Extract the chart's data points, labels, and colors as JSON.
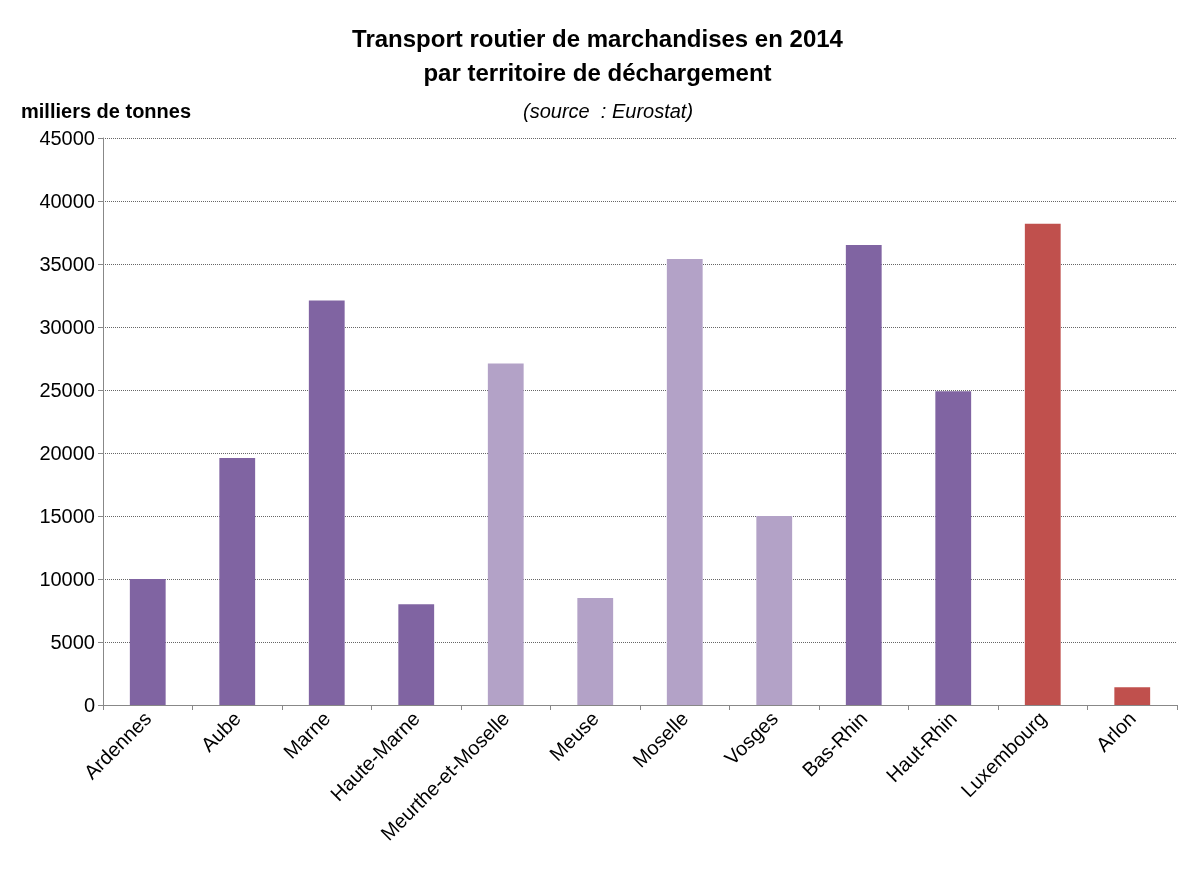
{
  "chart_data": {
    "type": "bar",
    "title": "Transport routier de marchandises en 2014\npar territoire de déchargement",
    "subtitle": "(source  : Eurostat)",
    "ylabel": "milliers de tonnes",
    "categories": [
      "Ardennes",
      "Aube",
      "Marne",
      "Haute-Marne",
      "Meurthe-et-Moselle",
      "Meuse",
      "Moselle",
      "Vosges",
      "Bas-Rhin",
      "Haut-Rhin",
      "Luxembourg",
      "Arlon"
    ],
    "values": [
      10000,
      19600,
      32100,
      8000,
      27100,
      8500,
      35400,
      15000,
      36500,
      24900,
      38200,
      1400
    ],
    "colors": [
      "#8064a2",
      "#8064a2",
      "#8064a2",
      "#8064a2",
      "#b3a2c7",
      "#b3a2c7",
      "#b3a2c7",
      "#b3a2c7",
      "#8064a2",
      "#8064a2",
      "#c0504d",
      "#c0504d"
    ],
    "ylim": [
      0,
      45000
    ],
    "yticks": [
      0,
      5000,
      10000,
      15000,
      20000,
      25000,
      30000,
      35000,
      40000,
      45000
    ],
    "grid": "y"
  }
}
